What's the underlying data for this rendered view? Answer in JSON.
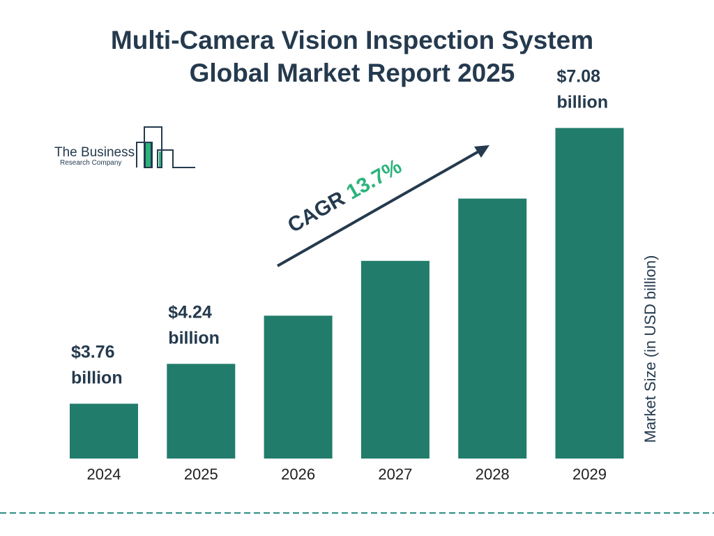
{
  "chart_data": {
    "type": "bar",
    "title": "Multi-Camera Vision Inspection System\nGlobal Market Report 2025",
    "title_lines": [
      "Multi-Camera Vision Inspection System",
      "Global Market Report 2025"
    ],
    "categories": [
      "2024",
      "2025",
      "2026",
      "2027",
      "2028",
      "2029"
    ],
    "values": [
      3.76,
      4.24,
      4.82,
      5.48,
      6.23,
      7.08
    ],
    "data_labels": [
      [
        "$3.76",
        "billion"
      ],
      [
        "$4.24",
        "billion"
      ],
      null,
      null,
      null,
      [
        "$7.08",
        "billion"
      ]
    ],
    "xlabel": "",
    "ylabel": "Market Size (in USD billion)",
    "grid": false,
    "bar_color": "#217c6b",
    "annotation": {
      "prefix": "CAGR ",
      "value": "13.7%",
      "prefix_color": "#253a4e",
      "value_color": "#2bb37c"
    }
  },
  "logo": {
    "line1": "The Business",
    "line2": "Research Company"
  }
}
